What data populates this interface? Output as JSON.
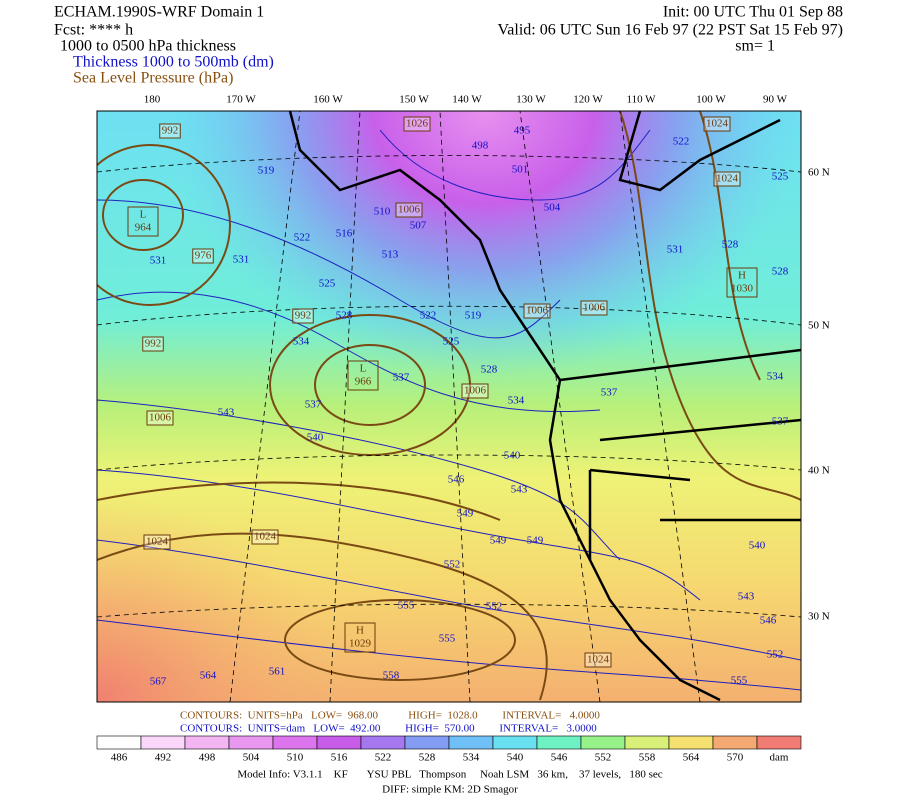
{
  "header": {
    "title": "ECHAM.1990S-WRF Domain 1",
    "forecast": "Fcst: **** h",
    "field": "1000 to 0500 hPa thickness",
    "init": "Init: 00 UTC Thu 01 Sep 88",
    "valid": "Valid: 06 UTC Sun 16 Feb 97 (22 PST Sat 15 Feb 97)",
    "smoothing": "sm= 1"
  },
  "legend": {
    "thickness": "Thickness 1000 to 500mb (dm)",
    "pressure": "Sea Level Pressure (hPa)"
  },
  "map": {
    "longitudes": [
      "180",
      "170 W",
      "160 W",
      "150 W",
      "140 W",
      "130 W",
      "120 W",
      "110 W",
      "100 W",
      "90 W"
    ],
    "latitudes": [
      "60 N",
      "50 N",
      "40 N",
      "30 N"
    ],
    "centers": [
      {
        "letter": "L",
        "value": 964
      },
      {
        "letter": "L",
        "value": 966
      },
      {
        "letter": "H",
        "value": 1030
      },
      {
        "letter": "H",
        "value": 1029
      }
    ],
    "pressure_labels": [
      992,
      976,
      992,
      992,
      1006,
      1024,
      1024,
      1026,
      1006,
      1006,
      1006,
      1006,
      1024,
      1024,
      1024
    ],
    "thickness_labels": [
      519,
      522,
      516,
      513,
      510,
      507,
      498,
      495,
      501,
      504,
      522,
      531,
      528,
      525,
      528,
      531,
      531,
      525,
      528,
      534,
      522,
      519,
      525,
      528,
      537,
      543,
      537,
      540,
      546,
      543,
      540,
      534,
      537,
      534,
      537,
      549,
      549,
      549,
      552,
      552,
      555,
      555,
      558,
      561,
      564,
      567,
      540,
      543,
      546,
      552,
      555
    ]
  },
  "contour_info": {
    "pressure": "CONTOURS:  UNITS=hPa   LOW=  968.00           HIGH=  1028.0         INTERVAL=   4.0000",
    "thickness": "CONTOURS:  UNITS=dam   LOW=  492.00         HIGH=  570.00         INTERVAL=   3.0000"
  },
  "colorbar": {
    "labels": [
      486,
      492,
      498,
      504,
      510,
      516,
      522,
      528,
      534,
      540,
      546,
      552,
      558,
      564,
      570
    ],
    "unit": "dam",
    "colors": [
      "#ffffff",
      "#fbd6fb",
      "#f3b6f3",
      "#ea98ef",
      "#dc74ee",
      "#c65ce8",
      "#a578ef",
      "#829df3",
      "#6fc0f6",
      "#68e0f0",
      "#6ef2c4",
      "#98f28a",
      "#d8f078",
      "#f6e070",
      "#f4a872",
      "#f07c74"
    ]
  },
  "footer": {
    "model": "Model Info: V3.1.1    KF       YSU PBL   Thompson     Noah LSM   36 km,    37 levels,   180 sec",
    "diff": "DIFF: simple KM: 2D Smagor"
  }
}
